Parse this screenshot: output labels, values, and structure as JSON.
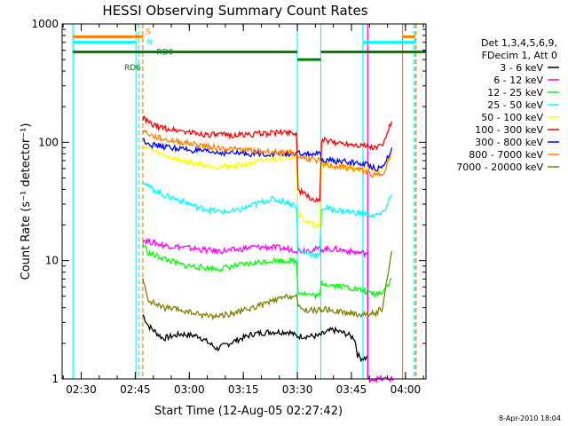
{
  "chart_data": {
    "type": "line",
    "title": "HESSI Observing Summary Count Rates",
    "xlabel": "Start Time (12-Aug-05 02:27:42)",
    "ylabel": "Count Rate (s⁻¹ detector⁻¹)",
    "x_unit": "minutes after 02:27:42",
    "xlim": [
      -3,
      98
    ],
    "ylim": [
      1,
      1000
    ],
    "y_scale": "log",
    "x_ticks": [
      {
        "v": 2.3,
        "label": "02:30"
      },
      {
        "v": 17.3,
        "label": "02:45"
      },
      {
        "v": 32.3,
        "label": "03:00"
      },
      {
        "v": 47.3,
        "label": "03:15"
      },
      {
        "v": 62.3,
        "label": "03:30"
      },
      {
        "v": 77.3,
        "label": "03:45"
      },
      {
        "v": 92.3,
        "label": "04:00"
      }
    ],
    "y_ticks": [
      {
        "v": 1,
        "label": "1"
      },
      {
        "v": 10,
        "label": "10"
      },
      {
        "v": 100,
        "label": "100"
      },
      {
        "v": 1000,
        "label": "1000"
      }
    ],
    "legend": {
      "position": "right",
      "header": [
        "Det 1,3,4,5,6,9,",
        "FDecim 1, Att 0"
      ]
    },
    "series": [
      {
        "name": "3 - 6 keV",
        "color": "#000000",
        "points": [
          [
            19.4,
            3.5
          ],
          [
            21,
            2.8
          ],
          [
            25,
            2.2
          ],
          [
            30,
            2.4
          ],
          [
            35,
            2.3
          ],
          [
            40,
            1.8
          ],
          [
            45,
            2.1
          ],
          [
            50,
            2.4
          ],
          [
            55,
            2.5
          ],
          [
            60,
            2.5
          ],
          [
            62,
            2.3
          ],
          [
            68,
            2.3
          ],
          [
            72,
            2.6
          ],
          [
            76,
            2.4
          ],
          [
            78.2,
            2.2
          ],
          [
            79,
            1.6
          ],
          [
            80,
            1.5
          ],
          [
            81.8,
            1.5
          ]
        ]
      },
      {
        "name": "6 - 12 keV",
        "color": "#ff00ff",
        "points": [
          [
            19.4,
            15
          ],
          [
            25,
            13.5
          ],
          [
            30,
            13
          ],
          [
            35,
            12.5
          ],
          [
            40,
            12
          ],
          [
            45,
            12.3
          ],
          [
            50,
            13
          ],
          [
            55,
            13
          ],
          [
            60,
            12.5
          ],
          [
            63,
            12.2
          ],
          [
            68,
            12.5
          ],
          [
            73,
            12.5
          ],
          [
            78,
            11.8
          ],
          [
            81.8,
            11.5
          ],
          [
            81.8,
            1
          ],
          [
            89,
            1
          ]
        ]
      },
      {
        "name": "12 - 25 keV",
        "color": "#00ff00",
        "points": [
          [
            19.4,
            14
          ],
          [
            21,
            11.5
          ],
          [
            25,
            10.5
          ],
          [
            30,
            9.2
          ],
          [
            35,
            8.8
          ],
          [
            40,
            8.5
          ],
          [
            45,
            9
          ],
          [
            50,
            9.5
          ],
          [
            55,
            10
          ],
          [
            60,
            10
          ],
          [
            62,
            9.8
          ],
          [
            62.5,
            5.5
          ],
          [
            65,
            5.2
          ],
          [
            68.5,
            5
          ],
          [
            69,
            6.5
          ],
          [
            72,
            6.2
          ],
          [
            76,
            6
          ],
          [
            80,
            5.6
          ],
          [
            84,
            5.2
          ],
          [
            86,
            5.5
          ],
          [
            88.5,
            7
          ]
        ]
      },
      {
        "name": "25 - 50 keV",
        "color": "#00ffff",
        "points": [
          [
            19.4,
            48
          ],
          [
            21,
            42
          ],
          [
            25,
            36
          ],
          [
            30,
            32
          ],
          [
            35,
            28
          ],
          [
            40,
            26
          ],
          [
            45,
            26
          ],
          [
            48,
            28
          ],
          [
            52,
            31
          ],
          [
            55,
            33
          ],
          [
            58,
            32
          ],
          [
            61,
            30
          ],
          [
            62,
            29
          ],
          [
            62.5,
            12
          ],
          [
            68.5,
            11
          ],
          [
            69,
            28
          ],
          [
            72,
            27
          ],
          [
            76,
            26
          ],
          [
            80,
            25
          ],
          [
            84,
            24
          ],
          [
            86,
            25
          ],
          [
            88.5,
            36
          ]
        ]
      },
      {
        "name": "50 - 100 keV",
        "color": "#ffff00",
        "points": [
          [
            19.4,
            95
          ],
          [
            22,
            85
          ],
          [
            25,
            78
          ],
          [
            30,
            70
          ],
          [
            35,
            65
          ],
          [
            40,
            62
          ],
          [
            45,
            63
          ],
          [
            50,
            67
          ],
          [
            55,
            72
          ],
          [
            60,
            76
          ],
          [
            62,
            75
          ],
          [
            62.5,
            25
          ],
          [
            65,
            21
          ],
          [
            68.5,
            19
          ],
          [
            69,
            66
          ],
          [
            72,
            63
          ],
          [
            76,
            62
          ],
          [
            80,
            60
          ],
          [
            84,
            58
          ],
          [
            86,
            60
          ],
          [
            88.5,
            75
          ]
        ]
      },
      {
        "name": "100 - 300 keV",
        "color": "#ff0000",
        "points": [
          [
            19.4,
            160
          ],
          [
            22,
            140
          ],
          [
            25,
            132
          ],
          [
            30,
            125
          ],
          [
            35,
            118
          ],
          [
            40,
            115
          ],
          [
            45,
            115
          ],
          [
            50,
            117
          ],
          [
            55,
            120
          ],
          [
            60,
            122
          ],
          [
            62,
            120
          ],
          [
            62.5,
            40
          ],
          [
            65,
            35
          ],
          [
            68.5,
            31
          ],
          [
            69,
            105
          ],
          [
            72,
            100
          ],
          [
            76,
            98
          ],
          [
            80,
            95
          ],
          [
            84,
            90
          ],
          [
            86,
            95
          ],
          [
            88.5,
            150
          ]
        ]
      },
      {
        "name": "300 - 800 keV",
        "color": "#0000ff",
        "points": [
          [
            19.4,
            105
          ],
          [
            22,
            95
          ],
          [
            25,
            92
          ],
          [
            30,
            88
          ],
          [
            35,
            84
          ],
          [
            40,
            82
          ],
          [
            45,
            81
          ],
          [
            50,
            80
          ],
          [
            55,
            80
          ],
          [
            60,
            80
          ],
          [
            62,
            78
          ],
          [
            62.5,
            80
          ],
          [
            68.5,
            79
          ],
          [
            69,
            70
          ],
          [
            72,
            70
          ],
          [
            76,
            68
          ],
          [
            80,
            66
          ],
          [
            82,
            65
          ],
          [
            84,
            60
          ],
          [
            86,
            62
          ],
          [
            88.5,
            90
          ]
        ]
      },
      {
        "name": "800 - 7000 keV",
        "color": "#ff8000",
        "points": [
          [
            19.4,
            125
          ],
          [
            22,
            113
          ],
          [
            25,
            106
          ],
          [
            30,
            100
          ],
          [
            35,
            95
          ],
          [
            40,
            90
          ],
          [
            45,
            87
          ],
          [
            50,
            85
          ],
          [
            55,
            83
          ],
          [
            60,
            82
          ],
          [
            62,
            80
          ],
          [
            62.5,
            75
          ],
          [
            68.5,
            70
          ],
          [
            69,
            65
          ],
          [
            72,
            63
          ],
          [
            76,
            61
          ],
          [
            80,
            58
          ],
          [
            82,
            56
          ],
          [
            84,
            52
          ],
          [
            86,
            55
          ],
          [
            88.5,
            80
          ]
        ]
      },
      {
        "name": "7000 - 20000 keV",
        "color": "#808000",
        "points": [
          [
            19.4,
            7
          ],
          [
            20.5,
            5
          ],
          [
            21.5,
            4.5
          ],
          [
            25,
            4
          ],
          [
            30,
            3.8
          ],
          [
            35,
            3.5
          ],
          [
            40,
            3.4
          ],
          [
            45,
            3.6
          ],
          [
            50,
            4
          ],
          [
            55,
            4.5
          ],
          [
            60,
            5
          ],
          [
            62,
            5
          ],
          [
            62.5,
            4
          ],
          [
            65,
            3.8
          ],
          [
            68.5,
            3.8
          ],
          [
            69,
            3.9
          ],
          [
            72,
            3.8
          ],
          [
            76,
            3.6
          ],
          [
            80,
            3.5
          ],
          [
            84,
            3.6
          ],
          [
            86,
            4
          ],
          [
            88.5,
            12
          ]
        ]
      }
    ],
    "flags": [
      {
        "label": "S",
        "color": "#ff8000",
        "x": [
          0,
          19.4
        ],
        "y": 780,
        "label_x": 19.4
      },
      {
        "label": "",
        "color": "#ff8000",
        "x": [
          91.5,
          95
        ],
        "y": 780
      },
      {
        "label": "N",
        "color": "#00ffff",
        "x": [
          0,
          17.5
        ],
        "y": 700,
        "label_x": 19.8
      },
      {
        "label": "",
        "color": "#00ffff",
        "x": [
          80.5,
          95.2
        ],
        "y": 700
      },
      {
        "label": "RD0",
        "color": "#008000",
        "x": [
          0,
          62.3
        ],
        "y": 580,
        "label_x": 22.5
      },
      {
        "label": "",
        "color": "#008000",
        "x": [
          62.3,
          68.8
        ],
        "y": 500
      },
      {
        "label": "",
        "color": "#008000",
        "x": [
          68.8,
          98
        ],
        "y": 580
      },
      {
        "label": "RD6",
        "color": "#008000",
        "x": [],
        "y": 500,
        "label_x": 13.5
      }
    ],
    "vlines": [
      {
        "x": 0,
        "color": "#00ffff",
        "style": "solid"
      },
      {
        "x": 17.5,
        "color": "#00ffff",
        "style": "solid"
      },
      {
        "x": 18.2,
        "color": "#00ffff",
        "style": "dashed"
      },
      {
        "x": 19.4,
        "color": "#ff8000",
        "style": "dashed"
      },
      {
        "x": 62.3,
        "color": "#00ffff",
        "style": "solid"
      },
      {
        "x": 68.8,
        "color": "#00ffff",
        "style": "solid"
      },
      {
        "x": 80.5,
        "color": "#00ffff",
        "style": "solid"
      },
      {
        "x": 81.8,
        "color": "#ff00ff",
        "style": "solid"
      },
      {
        "x": 91.5,
        "color": "#ff8000",
        "style": "solid"
      },
      {
        "x": 94.7,
        "color": "#00ffff",
        "style": "dashed"
      },
      {
        "x": 95.2,
        "color": "#ff8000",
        "style": "dashed"
      }
    ],
    "footer_date": "8-Apr-2010 18:04"
  }
}
